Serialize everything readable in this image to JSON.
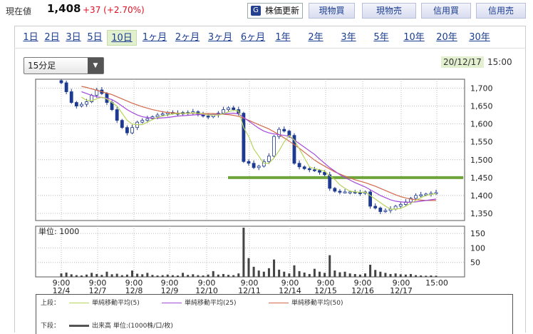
{
  "header": {
    "price_label": "現在値",
    "price_value": "1,408",
    "price_change": "+37 (+2.70%)",
    "buttons": {
      "refresh": "株価更新",
      "spot_buy": "現物買",
      "spot_sell": "現物売",
      "margin_buy": "信用買",
      "margin_sell": "信用売"
    }
  },
  "tabs": [
    "1日",
    "2日",
    "3日",
    "5日",
    "10日",
    "1ヶ月",
    "2ヶ月",
    "3ヶ月",
    "6ヶ月",
    "1年",
    "2年",
    "3年",
    "5年",
    "10年",
    "20年",
    "30年"
  ],
  "active_tab": "10日",
  "interval_select": {
    "value": "15分足"
  },
  "chart_date": "20/12/17",
  "chart_time": "15:00",
  "legend": {
    "upper_label": "上段：",
    "ma5": "単純移動平均(5)",
    "ma25": "単純移動平均(25)",
    "ma50": "単純移動平均(50)",
    "lower_label": "下段：",
    "volume": "出来高 単位:(1000株/口/枚)"
  },
  "colors": {
    "ma5": "#b8d45a",
    "ma25": "#a24bd8",
    "ma50": "#d2694a",
    "candle": "#1d3a90",
    "support_line": "#6ea53a"
  },
  "chart_data": [
    {
      "type": "candlestick",
      "y_ticks": [
        1350,
        1400,
        1450,
        1500,
        1550,
        1600,
        1650,
        1700
      ],
      "ylim": [
        1330,
        1725
      ],
      "x_tick_labels": [
        {
          "time": "9:00",
          "date": "12/4"
        },
        {
          "time": "9:00",
          "date": "12/7"
        },
        {
          "time": "9:00",
          "date": "12/8"
        },
        {
          "time": "9:00",
          "date": "12/9"
        },
        {
          "time": "9:00",
          "date": "12/10"
        },
        {
          "time": "9:00",
          "date": "12/11"
        },
        {
          "time": "9:00",
          "date": "12/14"
        },
        {
          "time": "9:00",
          "date": "12/15"
        },
        {
          "time": "9:00",
          "date": "12/16"
        },
        {
          "time": "9:00",
          "date": "12/17"
        },
        {
          "time": "15:00",
          "date": ""
        }
      ],
      "close_path": [
        1715,
        1690,
        1660,
        1650,
        1655,
        1662,
        1680,
        1695,
        1685,
        1660,
        1640,
        1610,
        1590,
        1575,
        1590,
        1605,
        1610,
        1615,
        1620,
        1625,
        1628,
        1632,
        1630,
        1628,
        1632,
        1630,
        1634,
        1628,
        1622,
        1620,
        1625,
        1630,
        1640,
        1645,
        1640,
        1630,
        1495,
        1490,
        1478,
        1482,
        1495,
        1510,
        1565,
        1585,
        1580,
        1568,
        1490,
        1480,
        1475,
        1472,
        1470,
        1465,
        1458,
        1420,
        1412,
        1410,
        1410,
        1410,
        1408,
        1406,
        1410,
        1370,
        1365,
        1355,
        1358,
        1362,
        1370,
        1375,
        1382,
        1392,
        1400,
        1402,
        1404,
        1406,
        1408
      ],
      "support_level": 1450,
      "ma5": [
        null,
        null,
        null,
        null,
        1675,
        1666,
        1665,
        1670,
        1675,
        1670,
        1660,
        1650,
        1630,
        1610,
        1600,
        1598,
        1598,
        1605,
        1612,
        1618,
        1622,
        1625,
        1628,
        1629,
        1630,
        1630,
        1631,
        1630,
        1628,
        1625,
        1625,
        1625,
        1628,
        1634,
        1638,
        1636,
        1590,
        1565,
        1530,
        1510,
        1490,
        1490,
        1505,
        1525,
        1550,
        1568,
        1555,
        1530,
        1505,
        1480,
        1475,
        1472,
        1468,
        1455,
        1445,
        1430,
        1420,
        1412,
        1410,
        1409,
        1409,
        1400,
        1390,
        1380,
        1370,
        1362,
        1362,
        1364,
        1370,
        1378,
        1386,
        1394,
        1400,
        1403,
        1405
      ],
      "ma25": [
        null,
        null,
        null,
        null,
        1690,
        1685,
        1680,
        1676,
        1674,
        1672,
        1668,
        1660,
        1650,
        1640,
        1632,
        1625,
        1620,
        1618,
        1616,
        1616,
        1617,
        1618,
        1620,
        1622,
        1623,
        1624,
        1625,
        1626,
        1626,
        1626,
        1626,
        1627,
        1628,
        1629,
        1630,
        1628,
        1618,
        1608,
        1598,
        1588,
        1580,
        1575,
        1572,
        1570,
        1568,
        1565,
        1555,
        1545,
        1535,
        1525,
        1515,
        1502,
        1490,
        1478,
        1468,
        1458,
        1450,
        1443,
        1436,
        1430,
        1424,
        1416,
        1408,
        1400,
        1394,
        1388,
        1384,
        1382,
        1381,
        1381,
        1382,
        1384,
        1386,
        1388,
        1390
      ],
      "ma50": [
        null,
        null,
        null,
        null,
        1705,
        1702,
        1698,
        1694,
        1690,
        1686,
        1682,
        1676,
        1670,
        1664,
        1658,
        1653,
        1648,
        1644,
        1640,
        1637,
        1634,
        1632,
        1631,
        1630,
        1630,
        1630,
        1630,
        1630,
        1629,
        1629,
        1629,
        1628,
        1627,
        1626,
        1624,
        1621,
        1616,
        1610,
        1604,
        1598,
        1592,
        1586,
        1578,
        1570,
        1561,
        1552,
        1542,
        1532,
        1521,
        1510,
        1499,
        1490,
        1482,
        1474,
        1466,
        1460,
        1454,
        1449,
        1444,
        1440,
        1436,
        1431,
        1426,
        1420,
        1414,
        1408,
        1402,
        1397,
        1393,
        1390,
        1388,
        1387,
        1386,
        1386,
        1386
      ]
    },
    {
      "type": "bar",
      "title": "単位: 1000",
      "y_ticks": [
        50,
        100,
        150
      ],
      "ylim": [
        0,
        175
      ],
      "values": [
        12,
        15,
        9,
        6,
        5,
        8,
        14,
        10,
        7,
        18,
        9,
        11,
        6,
        8,
        22,
        11,
        9,
        14,
        7,
        5,
        6,
        8,
        6,
        5,
        14,
        7,
        9,
        6,
        5,
        8,
        20,
        8,
        10,
        7,
        6,
        12,
        170,
        65,
        35,
        22,
        18,
        30,
        60,
        25,
        18,
        12,
        40,
        20,
        15,
        10,
        28,
        18,
        14,
        75,
        22,
        16,
        18,
        12,
        10,
        8,
        12,
        42,
        24,
        18,
        14,
        10,
        12,
        9,
        8,
        10,
        6,
        5,
        4,
        5,
        4
      ]
    }
  ]
}
